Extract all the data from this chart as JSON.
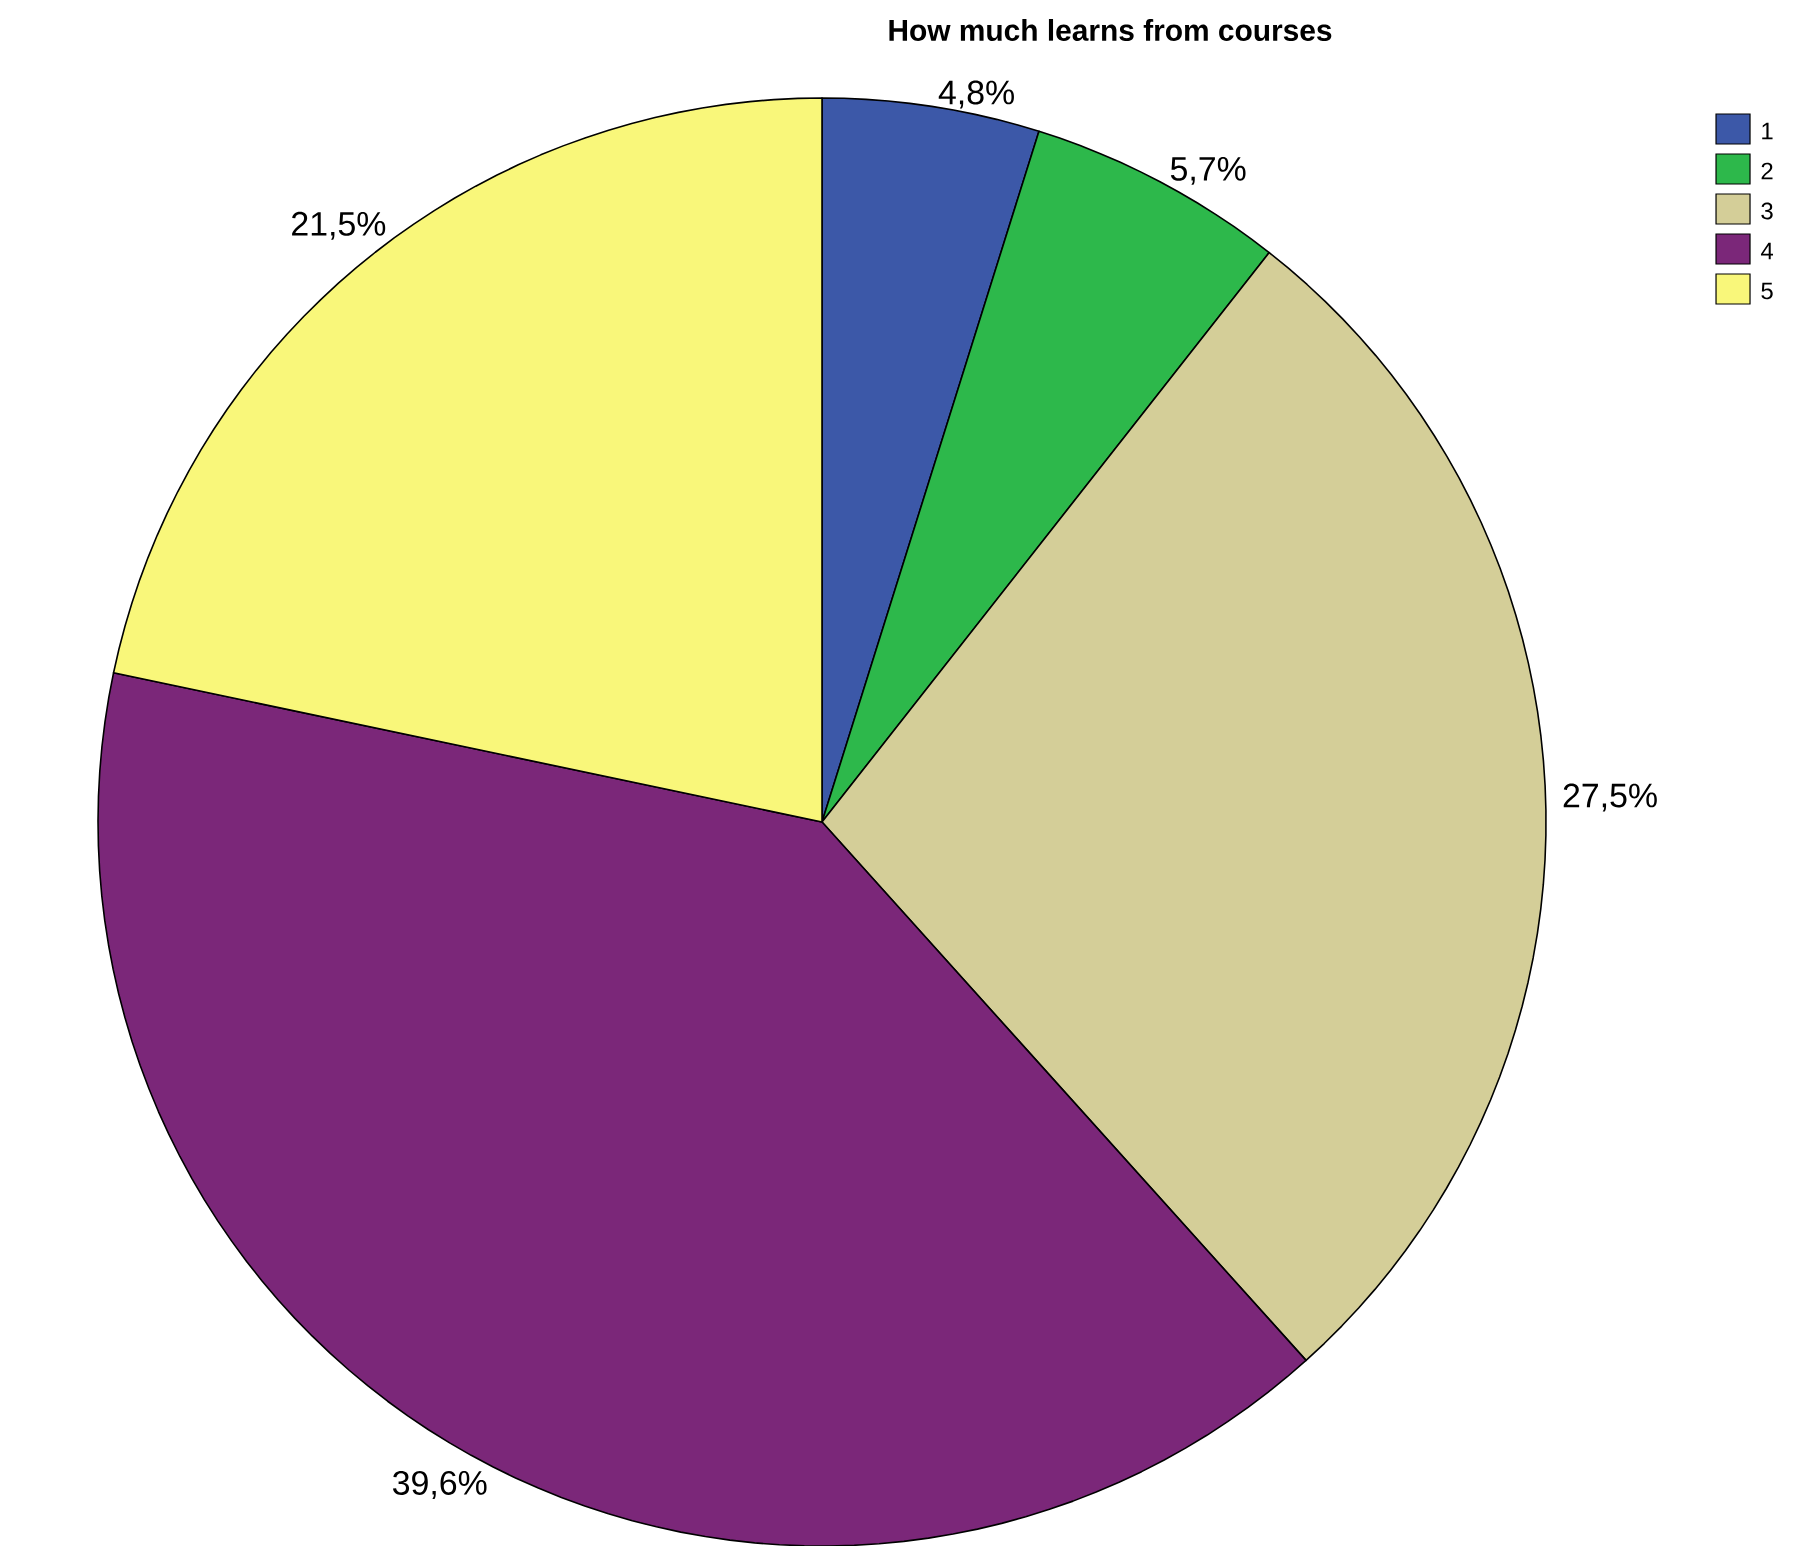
{
  "chart_data": {
    "type": "pie",
    "title": "How much learns from courses",
    "categories": [
      "1",
      "2",
      "3",
      "4",
      "5"
    ],
    "values": [
      4.8,
      5.7,
      27.5,
      39.6,
      21.5
    ],
    "value_labels": [
      "4,8%",
      "5,7%",
      "27,5%",
      "39,6%",
      "21,5%"
    ],
    "colors": [
      "#3c58a8",
      "#2db84b",
      "#d4ce98",
      "#7b2779",
      "#f9f77a"
    ],
    "legend": "top right"
  }
}
